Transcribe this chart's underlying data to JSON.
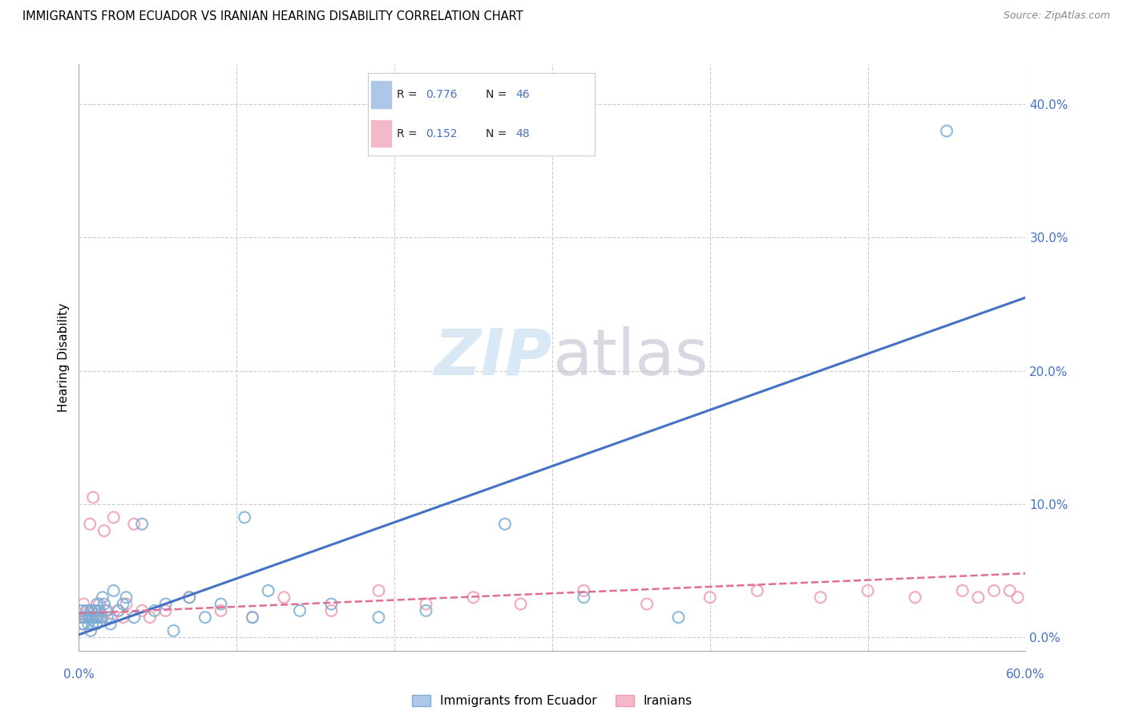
{
  "title": "IMMIGRANTS FROM ECUADOR VS IRANIAN HEARING DISABILITY CORRELATION CHART",
  "source": "Source: ZipAtlas.com",
  "ylabel": "Hearing Disability",
  "yticks": [
    "0.0%",
    "10.0%",
    "20.0%",
    "30.0%",
    "40.0%"
  ],
  "ytick_vals": [
    0.0,
    10.0,
    20.0,
    30.0,
    40.0
  ],
  "xlim": [
    0.0,
    60.0
  ],
  "ylim": [
    -1.0,
    43.0
  ],
  "legend_r1": "0.776",
  "legend_n1": "46",
  "legend_r2": "0.152",
  "legend_n2": "48",
  "color_blue_fill": "#aec6e8",
  "color_pink_fill": "#f4b8c8",
  "color_blue_line": "#4472c4",
  "color_pink_line": "#e07090",
  "color_blue_scatter": "#7aaed6",
  "color_pink_scatter": "#f09ab0",
  "ecuador_x": [
    0.15,
    0.2,
    0.3,
    0.4,
    0.5,
    0.6,
    0.7,
    0.75,
    0.8,
    0.85,
    0.9,
    1.0,
    1.05,
    1.1,
    1.15,
    1.2,
    1.3,
    1.4,
    1.5,
    1.6,
    1.7,
    1.8,
    2.0,
    2.2,
    2.5,
    2.8,
    3.0,
    3.5,
    4.0,
    4.8,
    5.5,
    6.0,
    7.0,
    8.0,
    9.0,
    10.5,
    11.0,
    12.0,
    14.0,
    16.0,
    19.0,
    22.0,
    27.0,
    32.0,
    38.0,
    55.0
  ],
  "ecuador_y": [
    1.5,
    2.0,
    1.0,
    1.5,
    2.0,
    1.0,
    1.5,
    0.5,
    2.0,
    1.0,
    1.5,
    2.0,
    1.5,
    1.0,
    2.5,
    1.5,
    2.0,
    1.5,
    3.0,
    2.5,
    2.0,
    1.5,
    1.0,
    3.5,
    2.0,
    2.5,
    3.0,
    1.5,
    8.5,
    2.0,
    2.5,
    0.5,
    3.0,
    1.5,
    2.5,
    9.0,
    1.5,
    3.5,
    2.0,
    2.5,
    1.5,
    2.0,
    8.5,
    3.0,
    1.5,
    38.0
  ],
  "iranian_x": [
    0.1,
    0.15,
    0.2,
    0.3,
    0.4,
    0.5,
    0.6,
    0.7,
    0.8,
    0.85,
    0.9,
    1.0,
    1.1,
    1.2,
    1.3,
    1.5,
    1.6,
    1.8,
    2.0,
    2.2,
    2.5,
    2.8,
    3.0,
    3.5,
    4.0,
    4.5,
    5.5,
    7.0,
    9.0,
    11.0,
    13.0,
    16.0,
    19.0,
    22.0,
    25.0,
    28.0,
    32.0,
    36.0,
    40.0,
    43.0,
    47.0,
    50.0,
    53.0,
    56.0,
    59.0,
    59.5,
    57.0,
    58.0
  ],
  "iranian_y": [
    2.0,
    1.5,
    1.0,
    2.5,
    1.5,
    2.0,
    1.5,
    8.5,
    2.0,
    1.5,
    10.5,
    2.0,
    1.5,
    2.0,
    2.5,
    1.5,
    8.0,
    2.0,
    1.5,
    9.0,
    2.0,
    1.5,
    2.5,
    8.5,
    2.0,
    1.5,
    2.0,
    3.0,
    2.0,
    1.5,
    3.0,
    2.0,
    3.5,
    2.5,
    3.0,
    2.5,
    3.5,
    2.5,
    3.0,
    3.5,
    3.0,
    3.5,
    3.0,
    3.5,
    3.5,
    3.0,
    3.0,
    3.5
  ],
  "blue_line_x": [
    0.0,
    60.0
  ],
  "blue_line_y": [
    0.2,
    25.5
  ],
  "pink_line_x": [
    0.0,
    60.0
  ],
  "pink_line_y": [
    1.8,
    4.8
  ]
}
